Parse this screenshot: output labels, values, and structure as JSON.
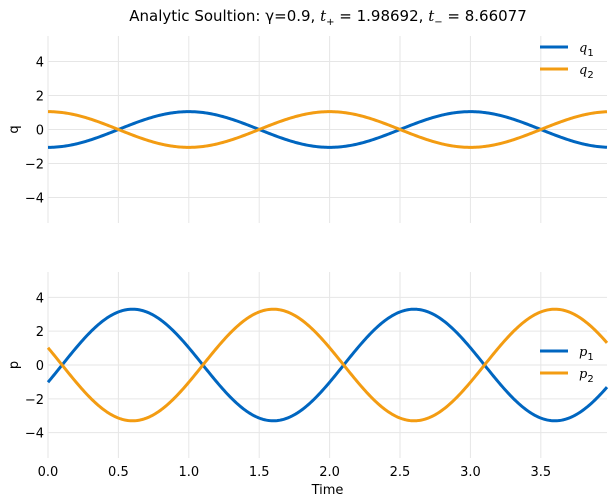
{
  "title": {
    "prefix": "Analytic Soultion: γ=0.9, ",
    "tplus_symbol": "t",
    "tplus_sub": "+",
    "tplus_value": " = 1.98692, ",
    "tminus_symbol": "t",
    "tminus_sub": "−",
    "tminus_value": " = 8.66077"
  },
  "colors": {
    "series1": "#0066c0",
    "series2": "#f39c12",
    "grid": "#e6e6e6"
  },
  "chart_data": [
    {
      "type": "line",
      "ylabel": "q",
      "xlabel": "",
      "xlim": [
        0,
        3.97
      ],
      "ylim": [
        -5.5,
        5.5
      ],
      "yticks": [
        -4,
        -2,
        0,
        2,
        4
      ],
      "ytick_labels": [
        "−4",
        "−2",
        "0",
        "2",
        "4"
      ],
      "grid": true,
      "legend_position": "top-right",
      "series": [
        {
          "name": "q",
          "subscript": "1",
          "amplitude": 1.05,
          "period": 2.0,
          "phase": 0.5,
          "offset": 0
        },
        {
          "name": "q",
          "subscript": "2",
          "amplitude": 1.05,
          "period": 2.0,
          "phase": 1.5,
          "offset": 0
        }
      ]
    },
    {
      "type": "line",
      "ylabel": "p",
      "xlabel": "Time",
      "xlim": [
        0,
        3.97
      ],
      "ylim": [
        -5.5,
        5.5
      ],
      "xticks": [
        0,
        0.5,
        1.0,
        1.5,
        2.0,
        2.5,
        3.0,
        3.5
      ],
      "xtick_labels": [
        "0.0",
        "0.5",
        "1.0",
        "1.5",
        "2.0",
        "2.5",
        "3.0",
        "3.5"
      ],
      "yticks": [
        -4,
        -2,
        0,
        2,
        4
      ],
      "ytick_labels": [
        "−4",
        "−2",
        "0",
        "2",
        "4"
      ],
      "grid": true,
      "legend_position": "center-right",
      "series": [
        {
          "name": "p",
          "subscript": "1",
          "amplitude": 3.3,
          "period": 2.0,
          "phase": 0.1,
          "offset": 0
        },
        {
          "name": "p",
          "subscript": "2",
          "amplitude": 3.3,
          "period": 2.0,
          "phase": 1.1,
          "offset": 0
        }
      ]
    }
  ]
}
